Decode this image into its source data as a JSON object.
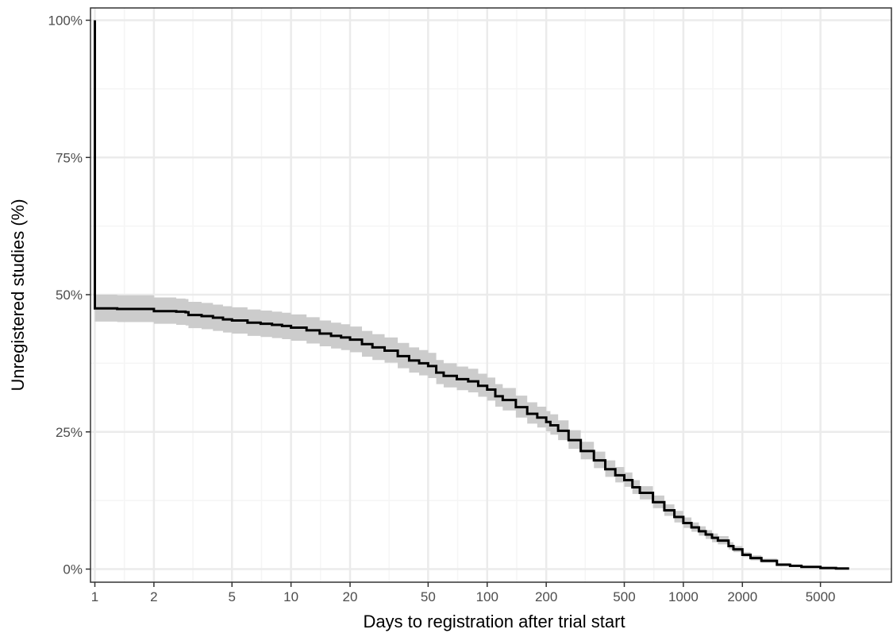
{
  "chart_data": {
    "type": "line",
    "title": "",
    "xlabel": "Days to registration after trial start",
    "ylabel": "Unregistered studies (%)",
    "x_scale": "log",
    "xlim": [
      1,
      10000
    ],
    "ylim": [
      0,
      100
    ],
    "grid": true,
    "legend": "none",
    "x_ticks": [
      1,
      2,
      5,
      10,
      20,
      50,
      100,
      200,
      500,
      1000,
      2000,
      5000
    ],
    "x_tick_labels": [
      "1",
      "2",
      "5",
      "10",
      "20",
      "50",
      "100",
      "200",
      "500",
      "1000",
      "2000",
      "5000"
    ],
    "y_ticks": [
      0,
      25,
      50,
      75,
      100
    ],
    "y_tick_labels": [
      "0%",
      "25%",
      "50%",
      "75%",
      "100%"
    ],
    "colors": {
      "line": "#000000",
      "ribbon": "#cccccc",
      "grid_major": "#ebebeb",
      "grid_minor": "#f5f5f5",
      "frame": "#333333"
    },
    "series": [
      {
        "x": [
          1,
          1,
          1.1,
          1.3,
          1.5,
          1.8,
          2,
          2.3,
          2.6,
          2.9,
          3,
          3.5,
          4,
          4.5,
          5,
          6,
          7,
          8,
          9,
          10,
          12,
          14,
          16,
          18,
          20,
          23,
          26,
          30,
          35,
          40,
          45,
          50,
          55,
          60,
          70,
          80,
          90,
          100,
          110,
          120,
          140,
          160,
          180,
          200,
          210,
          230,
          260,
          300,
          350,
          400,
          450,
          500,
          550,
          600,
          700,
          800,
          900,
          1000,
          1100,
          1200,
          1300,
          1400,
          1500,
          1700,
          1800,
          2000,
          2200,
          2500,
          3000,
          3500,
          4000,
          5000,
          6000,
          7000
        ],
        "y": [
          100,
          47.5,
          47.5,
          47.4,
          47.4,
          47.4,
          47,
          47,
          46.9,
          46.8,
          46.3,
          46.1,
          45.8,
          45.5,
          45.3,
          44.9,
          44.7,
          44.5,
          44.3,
          44,
          43.5,
          42.9,
          42.5,
          42.2,
          41.8,
          41,
          40.4,
          39.8,
          38.8,
          38,
          37.5,
          37,
          35.8,
          35.2,
          34.6,
          34.2,
          33.4,
          32.7,
          31.5,
          30.8,
          29.5,
          28.3,
          27.6,
          26.8,
          26.2,
          25.2,
          23.5,
          21.5,
          19.8,
          18.2,
          17.1,
          16.2,
          14.9,
          13.9,
          12.2,
          10.7,
          9.5,
          8.4,
          7.6,
          6.9,
          6.3,
          5.7,
          5.2,
          4.2,
          3.6,
          2.6,
          2.0,
          1.5,
          0.8,
          0.6,
          0.4,
          0.2,
          0.1,
          0.1
        ],
        "lower": [
          100,
          45.1,
          45.1,
          45,
          45,
          45,
          44.7,
          44.7,
          44.5,
          44.4,
          43.9,
          43.7,
          43.4,
          43.1,
          42.9,
          42.5,
          42.3,
          42.1,
          41.9,
          41.6,
          41.1,
          40.6,
          40.2,
          39.9,
          39.5,
          38.7,
          38.1,
          37.6,
          36.6,
          35.8,
          35.3,
          34.8,
          33.7,
          33.1,
          32.6,
          32.2,
          31.4,
          30.7,
          29.6,
          28.9,
          27.6,
          26.5,
          25.8,
          25.1,
          24.5,
          23.5,
          21.9,
          20,
          18.4,
          16.8,
          15.8,
          15,
          13.7,
          12.7,
          11.1,
          9.7,
          8.5,
          7.5,
          6.8,
          6.1,
          5.5,
          4.9,
          4.5,
          3.6,
          3.1,
          2.2,
          1.6,
          1.2,
          0.6,
          0.4,
          0.3,
          0.1,
          0.05,
          0.05
        ],
        "upper": [
          100,
          50,
          50,
          49.9,
          49.9,
          49.9,
          49.5,
          49.5,
          49.3,
          49.2,
          48.7,
          48.5,
          48.2,
          47.9,
          47.7,
          47.3,
          47.1,
          46.9,
          46.7,
          46.4,
          45.9,
          45.3,
          44.9,
          44.6,
          44.2,
          43.4,
          42.8,
          42.2,
          41.2,
          40.4,
          39.9,
          39.4,
          38.1,
          37.5,
          36.9,
          36.5,
          35.6,
          34.9,
          33.7,
          33,
          31.6,
          30.4,
          29.6,
          28.8,
          28.2,
          27.1,
          25.3,
          23.2,
          21.4,
          19.8,
          18.6,
          17.6,
          16.2,
          15.1,
          13.4,
          11.8,
          10.6,
          9.4,
          8.5,
          7.8,
          7.1,
          6.5,
          6,
          4.9,
          4.2,
          3.1,
          2.5,
          1.9,
          1.1,
          0.8,
          0.6,
          0.3,
          0.2,
          0.2
        ]
      }
    ]
  }
}
